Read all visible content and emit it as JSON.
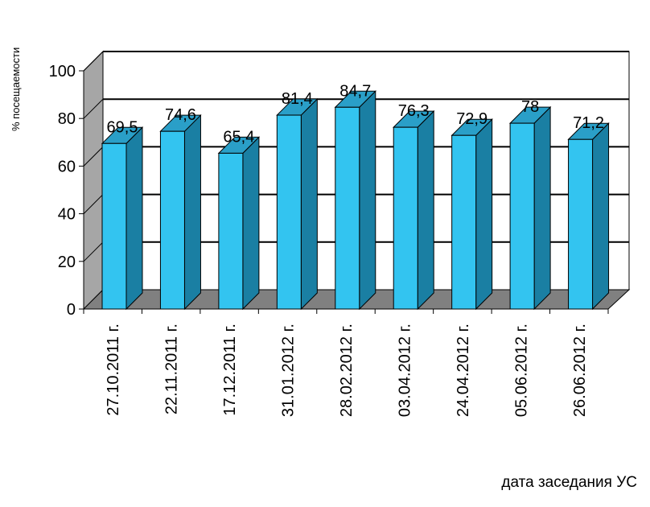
{
  "chart_data": {
    "type": "bar",
    "title": "",
    "xlabel": "дата заседания УС",
    "ylabel": "% посещаемости",
    "categories": [
      "27.10.2011 г.",
      "22.11.2011 г.",
      "17.12.2011 г.",
      "31.01.2012 г.",
      "28.02.2012 г.",
      "03.04.2012 г.",
      "24.04.2012 г.",
      "05.06.2012 г.",
      "26.06.2012 г."
    ],
    "values": [
      69.5,
      74.6,
      65.4,
      81.4,
      84.7,
      76.3,
      72.9,
      78,
      71.2
    ],
    "value_labels": [
      "69,5",
      "74,6",
      "65,4",
      "81,4",
      "84,7",
      "76,3",
      "72,9",
      "78",
      "71,2"
    ],
    "y_ticks": [
      "0",
      "20",
      "40",
      "60",
      "80",
      "100"
    ],
    "ylim": [
      0,
      100
    ],
    "grid": true,
    "legend": "none",
    "style": "3d-column",
    "colors": {
      "bar_front": "#33C4F0",
      "bar_side": "#1A7FA3",
      "bar_top": "#2A9FC8",
      "floor": "#808080",
      "wall": "#A6A6A6",
      "gridline": "#000000"
    }
  }
}
